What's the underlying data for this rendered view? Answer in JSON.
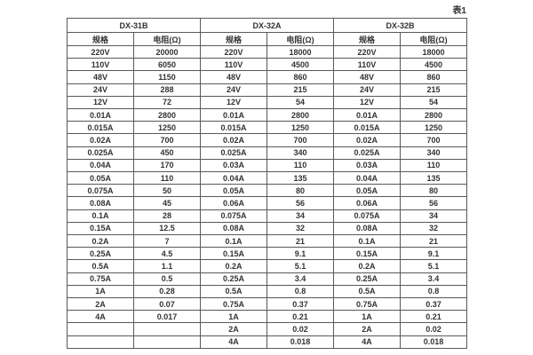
{
  "page": {
    "caption": "表1"
  },
  "colors": {
    "background": "#ffffff",
    "border": "#595959",
    "text": "#333333"
  },
  "table": {
    "groups": [
      {
        "name": "DX-31B",
        "spec_header": "规格",
        "resistance_header": "电阻(Ω)"
      },
      {
        "name": "DX-32A",
        "spec_header": "规格",
        "resistance_header": "电阻(Ω)"
      },
      {
        "name": "DX-32B",
        "spec_header": "规格",
        "resistance_header": "电阻(Ω)"
      }
    ],
    "rows": [
      [
        "220V",
        "20000",
        "220V",
        "18000",
        "220V",
        "18000"
      ],
      [
        "110V",
        "6050",
        "110V",
        "4500",
        "110V",
        "4500"
      ],
      [
        "48V",
        "1150",
        "48V",
        "860",
        "48V",
        "860"
      ],
      [
        "24V",
        "288",
        "24V",
        "215",
        "24V",
        "215"
      ],
      [
        "12V",
        "72",
        "12V",
        "54",
        "12V",
        "54"
      ],
      [
        "0.01A",
        "2800",
        "0.01A",
        "2800",
        "0.01A",
        "2800"
      ],
      [
        "0.015A",
        "1250",
        "0.015A",
        "1250",
        "0.015A",
        "1250"
      ],
      [
        "0.02A",
        "700",
        "0.02A",
        "700",
        "0.02A",
        "700"
      ],
      [
        "0.025A",
        "450",
        "0.025A",
        "340",
        "0.025A",
        "340"
      ],
      [
        "0.04A",
        "170",
        "0.03A",
        "110",
        "0.03A",
        "110"
      ],
      [
        "0.05A",
        "110",
        "0.04A",
        "135",
        "0.04A",
        "135"
      ],
      [
        "0.075A",
        "50",
        "0.05A",
        "80",
        "0.05A",
        "80"
      ],
      [
        "0.08A",
        "45",
        "0.06A",
        "56",
        "0.06A",
        "56"
      ],
      [
        "0.1A",
        "28",
        "0.075A",
        "34",
        "0.075A",
        "34"
      ],
      [
        "0.15A",
        "12.5",
        "0.08A",
        "32",
        "0.08A",
        "32"
      ],
      [
        "0.2A",
        "7",
        "0.1A",
        "21",
        "0.1A",
        "21"
      ],
      [
        "0.25A",
        "4.5",
        "0.15A",
        "9.1",
        "0.15A",
        "9.1"
      ],
      [
        "0.5A",
        "1.1",
        "0.2A",
        "5.1",
        "0.2A",
        "5.1"
      ],
      [
        "0.75A",
        "0.5",
        "0.25A",
        "3.4",
        "0.25A",
        "3.4"
      ],
      [
        "1A",
        "0.28",
        "0.5A",
        "0.8",
        "0.5A",
        "0.8"
      ],
      [
        "2A",
        "0.07",
        "0.75A",
        "0.37",
        "0.75A",
        "0.37"
      ],
      [
        "4A",
        "0.017",
        "1A",
        "0.21",
        "1A",
        "0.21"
      ],
      [
        "",
        "",
        "2A",
        "0.02",
        "2A",
        "0.02"
      ],
      [
        "",
        "",
        "4A",
        "0.018",
        "4A",
        "0.018"
      ]
    ]
  }
}
